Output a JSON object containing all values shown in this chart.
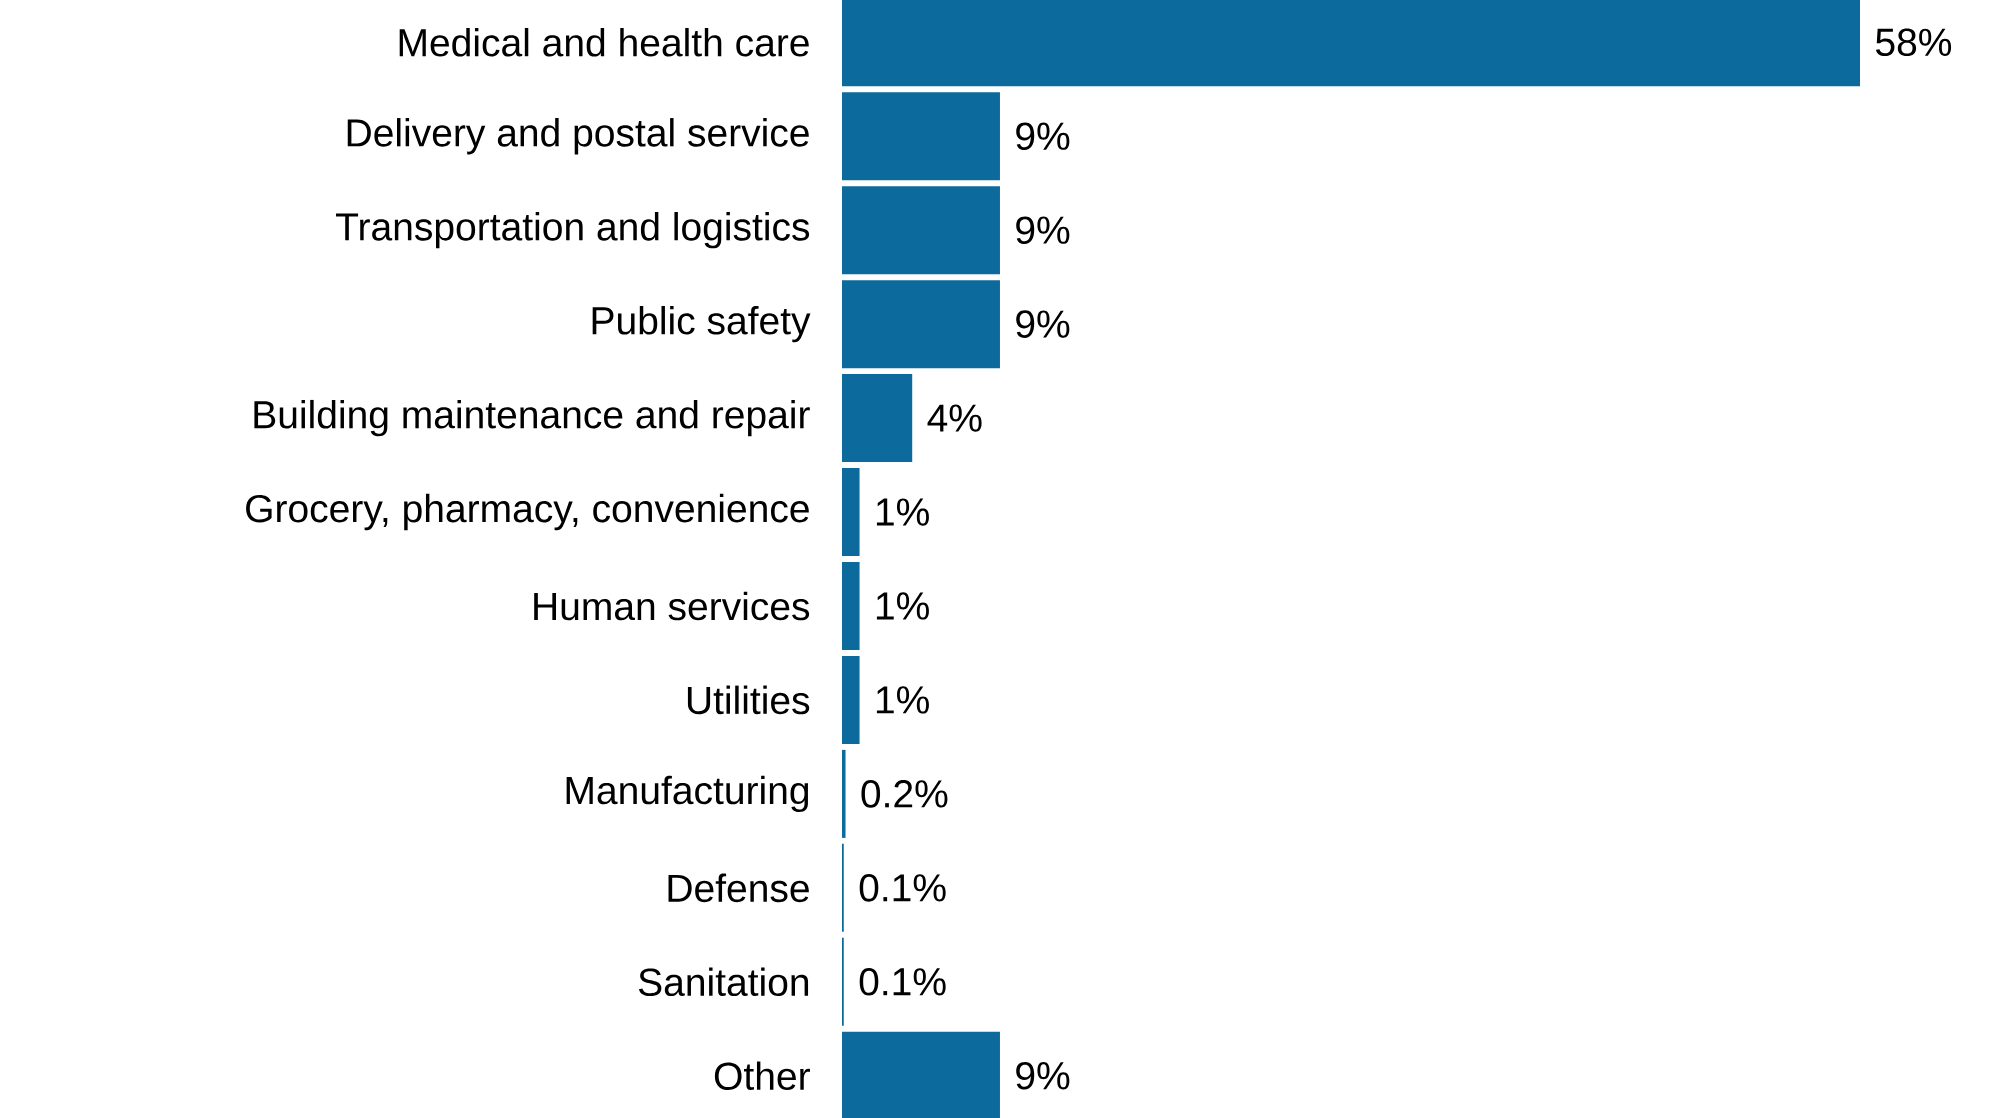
{
  "chart_data": {
    "type": "bar",
    "orientation": "horizontal",
    "color": "#0d6a9c",
    "categories": [
      "Medical and health care",
      "Delivery and postal service",
      "Transportation and logistics",
      "Public safety",
      "Building maintenance and repair",
      "Grocery, pharmacy, convenience",
      "Human services",
      "Utilities",
      "Manufacturing",
      "Defense",
      "Sanitation",
      "Other"
    ],
    "values": [
      58,
      9,
      9,
      9,
      4,
      1,
      1,
      1,
      0.2,
      0.1,
      0.1,
      9
    ],
    "value_labels": [
      "58%",
      "9%",
      "9%",
      "9%",
      "4%",
      "1%",
      "1%",
      "1%",
      "0.2%",
      "0.1%",
      "0.1%",
      "9%"
    ]
  }
}
